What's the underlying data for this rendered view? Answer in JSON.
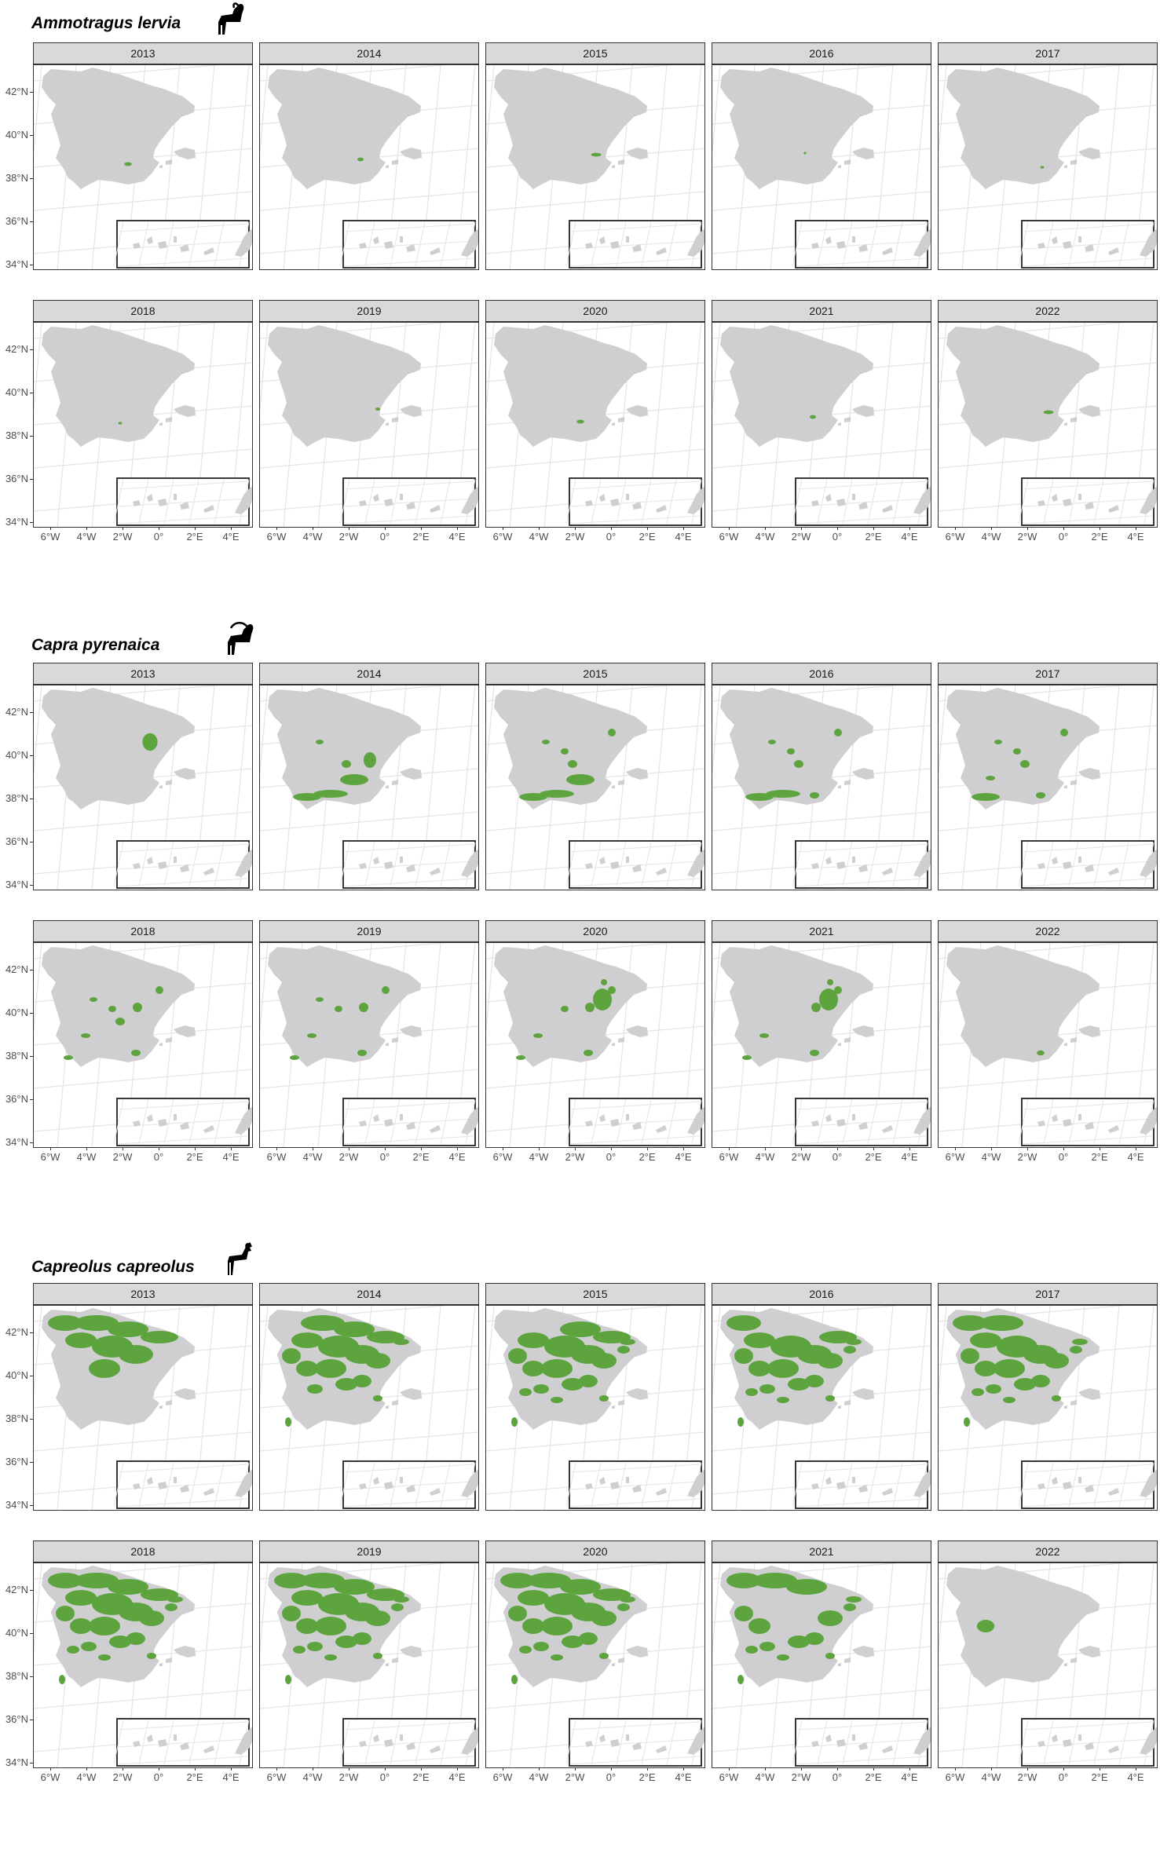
{
  "map": {
    "colors": {
      "land": "#cfcfd2",
      "presence": "#5ea43e",
      "graticule": "#e4e4e4",
      "frame": "#333333",
      "strip": "#d9d9d9"
    },
    "y_axis_labels": [
      "42°N",
      "40°N",
      "38°N",
      "36°N",
      "34°N"
    ],
    "x_axis_labels": [
      "6°W",
      "4°W",
      "2°W",
      "0°",
      "2°E",
      "4°E"
    ]
  },
  "species": [
    {
      "name": "Ammotragus lervia",
      "icon": "barbary-sheep-silhouette-icon",
      "years": [
        "2013",
        "2014",
        "2015",
        "2016",
        "2017",
        "2018",
        "2019",
        "2020",
        "2021",
        "2022"
      ],
      "presence_level": [
        0.02,
        0.05,
        0.05,
        0.05,
        0.04,
        0.05,
        0.06,
        0.03,
        0.03,
        0.03
      ]
    },
    {
      "name": "Capra pyrenaica",
      "icon": "ibex-silhouette-icon",
      "years": [
        "2013",
        "2014",
        "2015",
        "2016",
        "2017",
        "2018",
        "2019",
        "2020",
        "2021",
        "2022"
      ],
      "presence_level": [
        0.01,
        0.35,
        0.4,
        0.42,
        0.4,
        0.45,
        0.42,
        0.43,
        0.38,
        0.03
      ]
    },
    {
      "name": "Capreolus capreolus",
      "icon": "roe-deer-silhouette-icon",
      "years": [
        "2013",
        "2014",
        "2015",
        "2016",
        "2017",
        "2018",
        "2019",
        "2020",
        "2021",
        "2022"
      ],
      "presence_level": [
        0.3,
        0.65,
        0.7,
        0.72,
        0.7,
        0.8,
        0.78,
        0.82,
        0.6,
        0.03
      ]
    }
  ]
}
